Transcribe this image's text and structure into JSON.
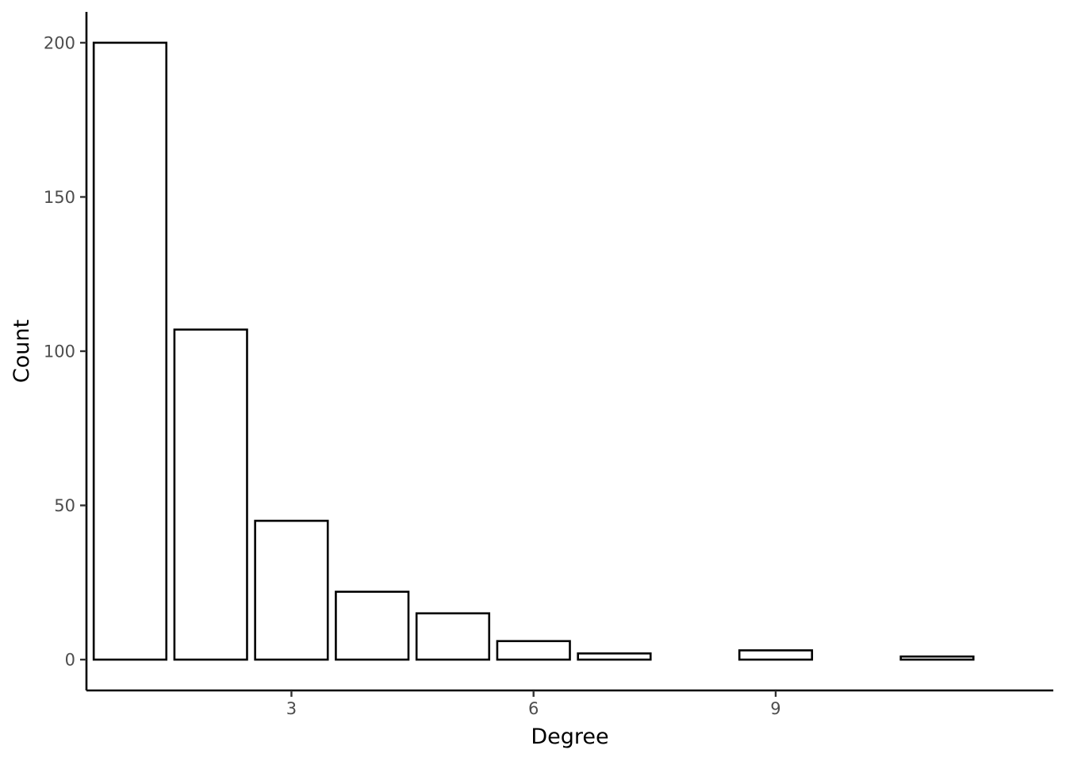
{
  "chart_data": {
    "type": "bar",
    "x": [
      1,
      2,
      3,
      4,
      5,
      6,
      7,
      8,
      9,
      10,
      11
    ],
    "values": [
      200,
      107,
      45,
      22,
      15,
      6,
      2,
      0,
      3,
      0,
      1
    ],
    "xlabel": "Degree",
    "ylabel": "Count",
    "xticks": [
      3,
      6,
      9
    ],
    "yticks": [
      0,
      50,
      100,
      150,
      200
    ],
    "xlim": [
      0.46,
      12.44
    ],
    "ylim": [
      -10,
      210
    ],
    "grid": false,
    "legend": "none",
    "bar_fill": "#ffffff",
    "bar_stroke": "#000000"
  }
}
